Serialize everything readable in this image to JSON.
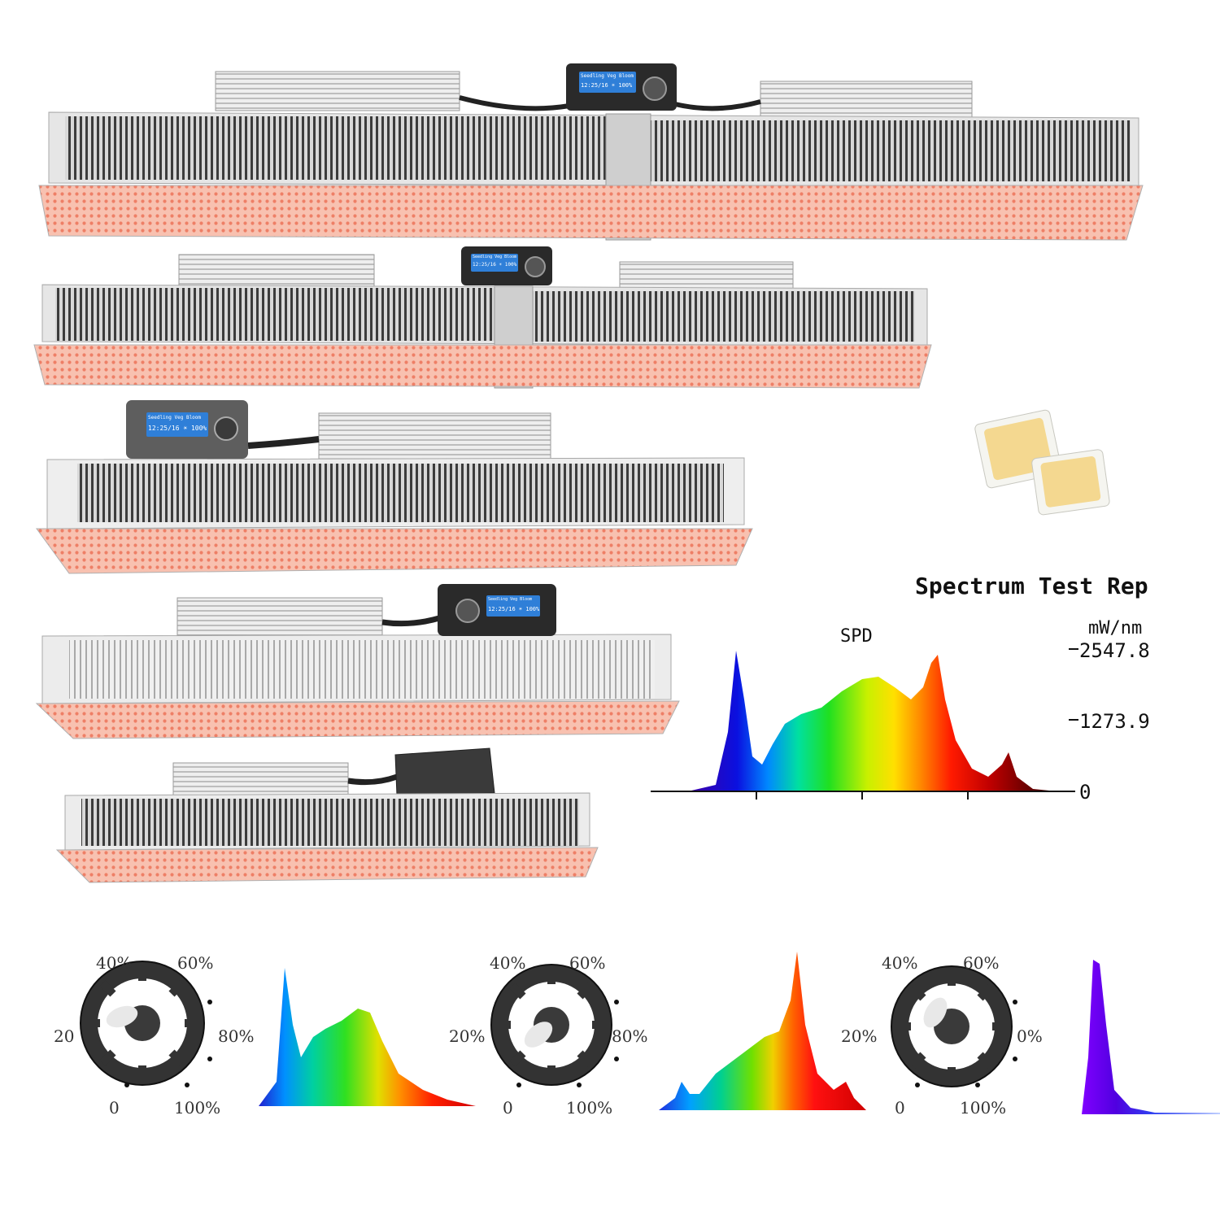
{
  "spectrum_report": {
    "title": "Spectrum Test Rep",
    "spd_label": "SPD",
    "unit_label": "mW/nm",
    "tick_labels": [
      "2547.8",
      "1273.9",
      "0"
    ]
  },
  "controller_display": {
    "modes": "Seedling Veg Bloom",
    "readout": "12:25/16 ☀ 100%"
  },
  "dimmer_knobs": [
    {
      "labels": [
        "40%",
        "60%",
        "20",
        "80%",
        "0",
        "100%"
      ]
    },
    {
      "labels": [
        "40%",
        "60%",
        "20%",
        "80%",
        "0",
        "100%"
      ]
    },
    {
      "labels": [
        "40%",
        "60%",
        "20%",
        "0%",
        "0",
        "100%"
      ]
    }
  ],
  "colors": {
    "frame": "#e9e9e9",
    "led_board": "#f6b3a0",
    "heatsink": "#4a4a4a",
    "display": "#2f7fd8",
    "controller": "#2a2a2a"
  },
  "icons": [
    "dial-icon",
    "led-chip-icon"
  ]
}
